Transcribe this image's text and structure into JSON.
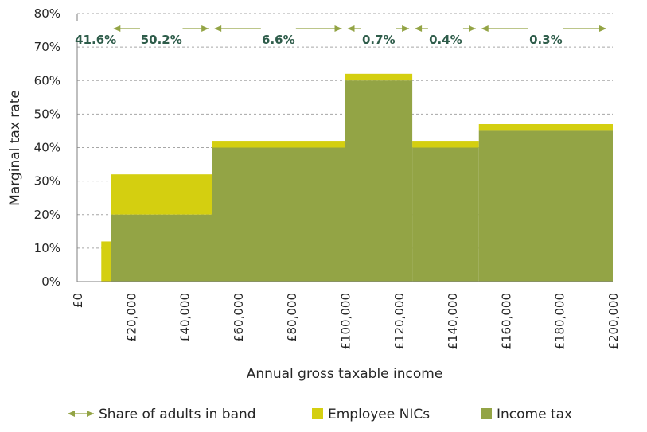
{
  "chart_data": {
    "type": "area",
    "xlabel": "Annual gross taxable income",
    "ylabel": "Marginal tax rate",
    "xlim": [
      0,
      200000
    ],
    "ylim": [
      0,
      80
    ],
    "x_ticks": [
      {
        "value": 0,
        "label": "£0"
      },
      {
        "value": 20000,
        "label": "£20,000"
      },
      {
        "value": 40000,
        "label": "£40,000"
      },
      {
        "value": 60000,
        "label": "£60,000"
      },
      {
        "value": 80000,
        "label": "£80,000"
      },
      {
        "value": 100000,
        "label": "£100,000"
      },
      {
        "value": 120000,
        "label": "£120,000"
      },
      {
        "value": 140000,
        "label": "£140,000"
      },
      {
        "value": 160000,
        "label": "£160,000"
      },
      {
        "value": 180000,
        "label": "£180,000"
      },
      {
        "value": 200000,
        "label": "£200,000"
      }
    ],
    "y_ticks": [
      {
        "value": 0,
        "label": "0%"
      },
      {
        "value": 10,
        "label": "10%"
      },
      {
        "value": 20,
        "label": "20%"
      },
      {
        "value": 30,
        "label": "30%"
      },
      {
        "value": 40,
        "label": "40%"
      },
      {
        "value": 50,
        "label": "50%"
      },
      {
        "value": 60,
        "label": "60%"
      },
      {
        "value": 70,
        "label": "70%"
      },
      {
        "value": 80,
        "label": "80%"
      }
    ],
    "grid": "horizontal dashed",
    "series": [
      {
        "name": "Income tax",
        "color": "#93a445",
        "segments": [
          {
            "x0": 0,
            "x1": 12570,
            "value": 0
          },
          {
            "x0": 12570,
            "x1": 50270,
            "value": 20
          },
          {
            "x0": 50270,
            "x1": 100000,
            "value": 40
          },
          {
            "x0": 100000,
            "x1": 125140,
            "value": 60
          },
          {
            "x0": 125140,
            "x1": 150000,
            "value": 40
          },
          {
            "x0": 150000,
            "x1": 200000,
            "value": 45
          }
        ]
      },
      {
        "name": "Employee NICs",
        "color": "#d4cf10",
        "segments": [
          {
            "x0": 0,
            "x1": 9000,
            "value": 0
          },
          {
            "x0": 9000,
            "x1": 12570,
            "value": 12
          },
          {
            "x0": 12570,
            "x1": 50270,
            "value": 12
          },
          {
            "x0": 50270,
            "x1": 100000,
            "value": 2
          },
          {
            "x0": 100000,
            "x1": 125140,
            "value": 2
          },
          {
            "x0": 125140,
            "x1": 150000,
            "value": 2
          },
          {
            "x0": 150000,
            "x1": 200000,
            "value": 2
          }
        ]
      }
    ],
    "bands": [
      {
        "x0": 0,
        "x1": 12570,
        "share": "41.6%"
      },
      {
        "x0": 12570,
        "x1": 50270,
        "share": "50.2%"
      },
      {
        "x0": 50270,
        "x1": 100000,
        "share": "6.6%"
      },
      {
        "x0": 100000,
        "x1": 125140,
        "share": "0.7%"
      },
      {
        "x0": 125140,
        "x1": 150000,
        "share": "0.4%"
      },
      {
        "x0": 150000,
        "x1": 200000,
        "share": "0.3%"
      }
    ],
    "band_arrow_color": "#93a445",
    "band_label_color": "#2e5c4a",
    "legend": {
      "position": "bottom",
      "items": [
        {
          "label": "Share of adults in band",
          "kind": "arrow",
          "color": "#93a445"
        },
        {
          "label": "Employee NICs",
          "kind": "box",
          "color": "#d4cf10"
        },
        {
          "label": "Income tax",
          "kind": "box",
          "color": "#93a445"
        }
      ]
    }
  }
}
